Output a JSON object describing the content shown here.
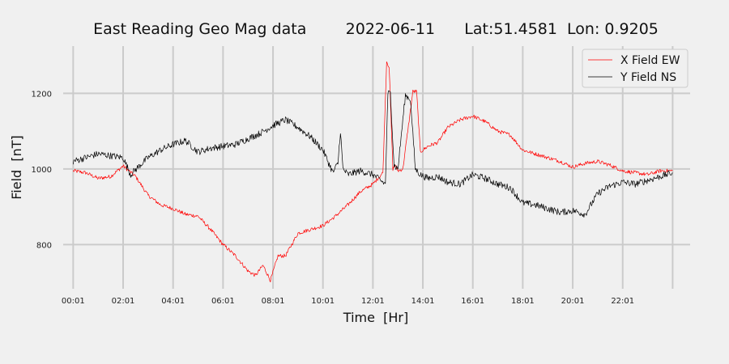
{
  "chart_data": {
    "type": "line",
    "title": "East Reading Geo Mag data        2022-06-11      Lat:51.4581  Lon: 0.9205",
    "xlabel": "Time  [Hr]",
    "ylabel": "Field  [nT]",
    "x_ticks": [
      "00:01",
      "02:01",
      "04:01",
      "06:01",
      "08:01",
      "10:01",
      "12:01",
      "14:01",
      "16:01",
      "18:01",
      "20:01",
      "22:01"
    ],
    "x_range_hours": [
      -0.4,
      24.7
    ],
    "y_ticks": [
      800,
      1000,
      1200
    ],
    "ylim": [
      683,
      1325
    ],
    "grid": true,
    "legend_position": "top-right",
    "series": [
      {
        "name": "X Field EW",
        "color": "#ff0000",
        "x_hours": [
          0,
          0.5,
          1,
          1.5,
          2,
          2.5,
          3,
          3.5,
          4,
          4.5,
          5,
          5.5,
          6,
          6.5,
          7,
          7.3,
          7.6,
          7.9,
          8.2,
          8.5,
          9,
          9.5,
          10,
          10.5,
          11,
          11.5,
          12,
          12.4,
          12.55,
          12.65,
          12.8,
          12.9,
          13.0,
          13.2,
          13.6,
          13.75,
          13.9,
          14.2,
          14.6,
          15,
          15.5,
          16,
          16.5,
          17,
          17.5,
          18,
          18.5,
          19,
          19.5,
          20,
          20.5,
          21,
          21.5,
          22,
          22.5,
          23,
          23.5,
          24
        ],
        "values": [
          995,
          990,
          975,
          980,
          1008,
          980,
          930,
          905,
          895,
          880,
          875,
          840,
          800,
          770,
          730,
          718,
          745,
          705,
          770,
          770,
          830,
          840,
          850,
          875,
          905,
          940,
          960,
          990,
          1285,
          1270,
          1000,
          1010,
          995,
          1000,
          1205,
          1205,
          1045,
          1060,
          1070,
          1110,
          1130,
          1140,
          1125,
          1100,
          1090,
          1050,
          1040,
          1030,
          1020,
          1005,
          1015,
          1020,
          1010,
          995,
          990,
          985,
          995,
          995
        ]
      },
      {
        "name": "Y Field NS",
        "color": "#000000",
        "x_hours": [
          0,
          0.5,
          1,
          1.5,
          2,
          2.3,
          2.6,
          3,
          3.5,
          4,
          4.5,
          5,
          5.5,
          6,
          6.5,
          7,
          7.5,
          8,
          8.5,
          9,
          9.5,
          10,
          10.2,
          10.4,
          10.6,
          10.7,
          10.8,
          11,
          11.5,
          12,
          12.3,
          12.5,
          12.6,
          12.7,
          12.85,
          13.0,
          13.3,
          13.5,
          13.7,
          13.9,
          14.2,
          14.6,
          15,
          15.5,
          16,
          16.5,
          17,
          17.5,
          18,
          18.5,
          19,
          19.5,
          20,
          20.5,
          21,
          21.5,
          22,
          22.5,
          23,
          23.5,
          24
        ],
        "values": [
          1020,
          1030,
          1040,
          1035,
          1030,
          985,
          1005,
          1030,
          1050,
          1065,
          1075,
          1045,
          1055,
          1060,
          1065,
          1080,
          1095,
          1115,
          1130,
          1110,
          1085,
          1050,
          1020,
          990,
          1015,
          1100,
          1000,
          985,
          995,
          985,
          970,
          960,
          1200,
          1200,
          1010,
          1000,
          1195,
          1185,
          1000,
          985,
          975,
          980,
          965,
          960,
          985,
          975,
          960,
          950,
          910,
          905,
          895,
          885,
          890,
          880,
          935,
          955,
          965,
          960,
          970,
          980,
          990
        ]
      }
    ]
  }
}
